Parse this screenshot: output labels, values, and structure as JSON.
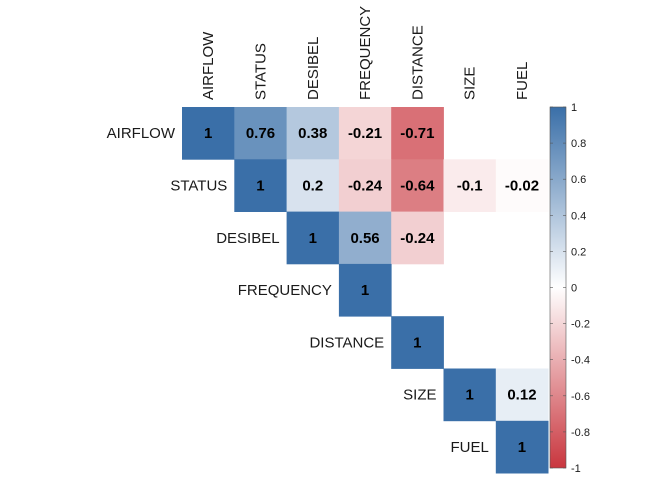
{
  "chart_data": {
    "type": "heatmap",
    "variables": [
      "AIRFLOW",
      "STATUS",
      "DESIBEL",
      "FREQUENCY",
      "DISTANCE",
      "SIZE",
      "FUEL"
    ],
    "cells": [
      {
        "row": "AIRFLOW",
        "col": "AIRFLOW",
        "value": 1,
        "label": "1"
      },
      {
        "row": "AIRFLOW",
        "col": "STATUS",
        "value": 0.76,
        "label": "0.76"
      },
      {
        "row": "AIRFLOW",
        "col": "DESIBEL",
        "value": 0.38,
        "label": "0.38"
      },
      {
        "row": "AIRFLOW",
        "col": "FREQUENCY",
        "value": -0.21,
        "label": "-0.21"
      },
      {
        "row": "AIRFLOW",
        "col": "DISTANCE",
        "value": -0.71,
        "label": "-0.71"
      },
      {
        "row": "STATUS",
        "col": "STATUS",
        "value": 1,
        "label": "1"
      },
      {
        "row": "STATUS",
        "col": "DESIBEL",
        "value": 0.2,
        "label": "0.2"
      },
      {
        "row": "STATUS",
        "col": "FREQUENCY",
        "value": -0.24,
        "label": "-0.24"
      },
      {
        "row": "STATUS",
        "col": "DISTANCE",
        "value": -0.64,
        "label": "-0.64"
      },
      {
        "row": "STATUS",
        "col": "SIZE",
        "value": -0.1,
        "label": "-0.1"
      },
      {
        "row": "STATUS",
        "col": "FUEL",
        "value": -0.02,
        "label": "-0.02"
      },
      {
        "row": "DESIBEL",
        "col": "DESIBEL",
        "value": 1,
        "label": "1"
      },
      {
        "row": "DESIBEL",
        "col": "FREQUENCY",
        "value": 0.56,
        "label": "0.56"
      },
      {
        "row": "DESIBEL",
        "col": "DISTANCE",
        "value": -0.24,
        "label": "-0.24"
      },
      {
        "row": "FREQUENCY",
        "col": "FREQUENCY",
        "value": 1,
        "label": "1"
      },
      {
        "row": "DISTANCE",
        "col": "DISTANCE",
        "value": 1,
        "label": "1"
      },
      {
        "row": "SIZE",
        "col": "SIZE",
        "value": 1,
        "label": "1"
      },
      {
        "row": "SIZE",
        "col": "FUEL",
        "value": 0.12,
        "label": "0.12"
      },
      {
        "row": "FUEL",
        "col": "FUEL",
        "value": 1,
        "label": "1"
      }
    ],
    "colorbar": {
      "range": [
        -1,
        1
      ],
      "ticks": [
        "1",
        "0.8",
        "0.6",
        "0.4",
        "0.2",
        "0",
        "-0.2",
        "-0.4",
        "-0.6",
        "-0.8",
        "-1"
      ],
      "tick_values": [
        1,
        0.8,
        0.6,
        0.4,
        0.2,
        0,
        -0.2,
        -0.4,
        -0.6,
        -0.8,
        -1
      ],
      "colors": {
        "negative": "#C9363E",
        "zero": "#FFFFFF",
        "positive": "#3A6FA8"
      }
    },
    "legend": "right",
    "grid": false
  }
}
